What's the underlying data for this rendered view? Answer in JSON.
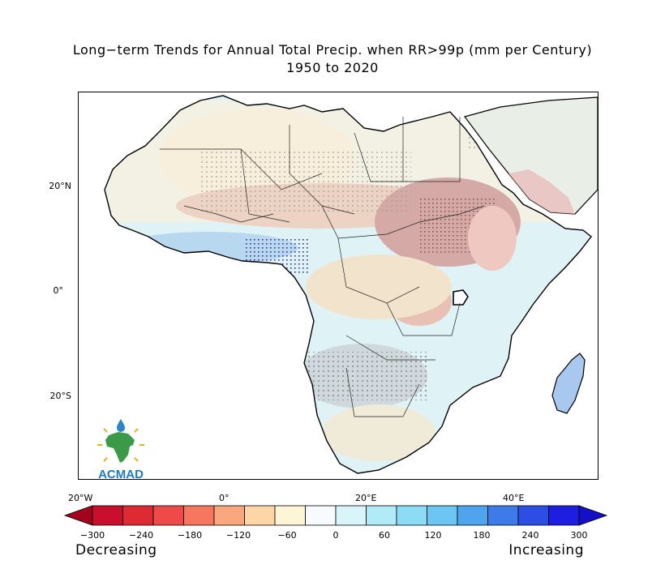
{
  "title": {
    "line1": "Long−term Trends for Annual Total Precip. when RR>99p (mm per Century)",
    "line2": "1950 to 2020"
  },
  "axes": {
    "lat_labels": [
      "20°N",
      "0°",
      "20°S"
    ],
    "lon_labels": [
      "20°W",
      "0°",
      "20°E",
      "40°E"
    ]
  },
  "colorbar": {
    "ticks": [
      "−300",
      "−240",
      "−180",
      "−120",
      "−60",
      "0",
      "60",
      "120",
      "180",
      "240",
      "300"
    ],
    "colors": [
      "#c8102e",
      "#dc2b33",
      "#ee4a47",
      "#f7775e",
      "#fba77d",
      "#fdd6a6",
      "#fef4d6",
      "#f7fbfd",
      "#d9f5fb",
      "#b1ebf8",
      "#8cdcf6",
      "#6bc6f4",
      "#4ea5ee",
      "#3c7be8",
      "#2d4ee4",
      "#1d1edf"
    ],
    "left_label": "Decreasing",
    "right_label": "Increasing"
  },
  "logo": {
    "text": "ACMAD",
    "colors": {
      "africa": "#3a9a48",
      "drop": "#2b86c8",
      "rays": "#e8b020",
      "text": "#1f7ac0"
    }
  },
  "map": {
    "land_base_color": "#dff3f7",
    "ocean_color": "#ffffff",
    "stipple_color": "#9a9a9a"
  }
}
